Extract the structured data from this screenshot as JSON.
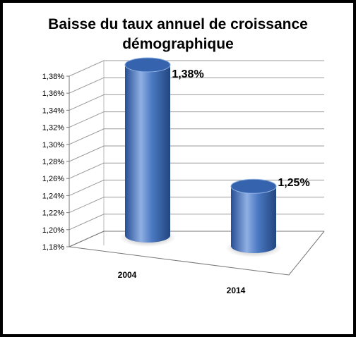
{
  "chart_data": {
    "type": "bar",
    "title": "Baisse du taux annuel de croissance démographique",
    "title_lines": [
      "Baisse du taux annuel de croissance",
      "démographique"
    ],
    "categories": [
      "2004",
      "2014"
    ],
    "values": [
      1.38,
      1.25
    ],
    "data_labels": [
      "1,38%",
      "1,25%"
    ],
    "ylim": [
      1.18,
      1.38
    ],
    "y_ticks": [
      1.18,
      1.2,
      1.22,
      1.24,
      1.26,
      1.28,
      1.3,
      1.32,
      1.34,
      1.36,
      1.38
    ],
    "y_tick_labels": [
      "1,18%",
      "1,20%",
      "1,22%",
      "1,24%",
      "1,26%",
      "1,28%",
      "1,30%",
      "1,32%",
      "1,34%",
      "1,36%",
      "1,38%"
    ],
    "grid": true,
    "legend": "none",
    "style": "3d-cylinder",
    "colors": {
      "bar": "#4a78c2",
      "bar_dark": "#274e96",
      "bar_light": "#8fb0e3",
      "bar_top": "#3563ad"
    }
  }
}
